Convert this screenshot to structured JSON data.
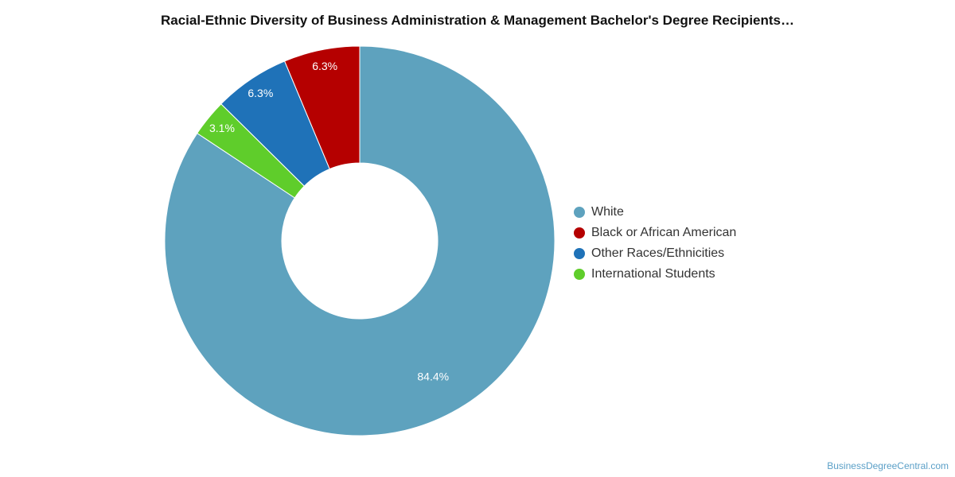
{
  "chart_data": {
    "type": "pie",
    "title": "Racial-Ethnic Diversity of Business Administration & Management Bachelor's Degree Recipients…",
    "donut": true,
    "legend_position": "right",
    "categories": [
      "White",
      "Black or African American",
      "Other Races/Ethnicities",
      "International Students"
    ],
    "values": [
      84.4,
      6.3,
      6.3,
      3.1
    ],
    "labels": [
      "84.4%",
      "6.3%",
      "6.3%",
      "3.1%"
    ],
    "colors": [
      "#5ea2be",
      "#b50000",
      "#1f72b8",
      "#5fcd2b"
    ]
  },
  "legend": {
    "items": [
      {
        "label": "White",
        "color": "#5ea2be"
      },
      {
        "label": "Black or African American",
        "color": "#b50000"
      },
      {
        "label": "Other Races/Ethnicities",
        "color": "#1f72b8"
      },
      {
        "label": "International Students",
        "color": "#5fcd2b"
      }
    ]
  },
  "credit": "BusinessDegreeCentral.com"
}
